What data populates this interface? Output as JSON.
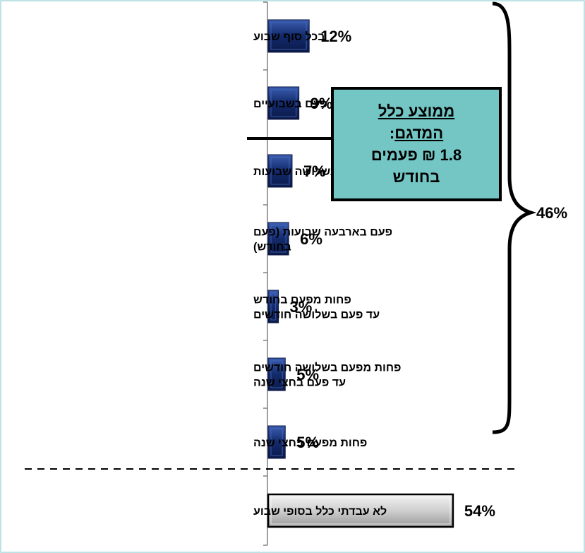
{
  "chart_data": {
    "type": "bar",
    "orientation": "horizontal",
    "categories": [
      [
        "בכל סוף שבוע"
      ],
      [
        "פעם בשבועיים"
      ],
      [
        "פעם בשלושה שבועות"
      ],
      [
        "פעם בארבעה שבועות (פעם",
        "בחודש)"
      ],
      [
        "פחות מפעם בחודש",
        "עד פעם בשלושה חודשים"
      ],
      [
        "פחות מפעם בשלושה חודשים",
        "עד פעם בחצי שנה"
      ],
      [
        "פחות מפעם בחצי שנה"
      ],
      [
        "לא עבדתי כלל בסופי שבוע"
      ]
    ],
    "values": [
      12,
      9,
      7,
      6,
      3,
      5,
      5,
      54
    ],
    "value_labels": [
      "12%",
      "9%",
      "7%",
      "6%",
      "3%",
      "5%",
      "5%",
      "54%"
    ],
    "group_total_label": "46%",
    "colors": {
      "bar": "#1b2f6e",
      "bar_last": "#cfcfcf",
      "callout": "#74c6c5"
    }
  },
  "callout": {
    "line1": "ממוצע כלל",
    "line2": "המדגם",
    "line2_suffix": ":",
    "line3": "1.8 ₪ פעמים",
    "line4": "בחודש"
  }
}
